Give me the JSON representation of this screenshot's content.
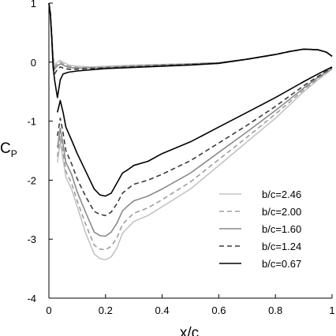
{
  "chart_data": {
    "type": "line",
    "title": "",
    "xlabel": "x/c",
    "ylabel": {
      "main": "C",
      "sub": "P"
    },
    "xlim": [
      0,
      1
    ],
    "ylim": [
      -4,
      1
    ],
    "x_ticks": [
      0,
      0.2,
      0.4,
      0.6,
      0.8,
      1
    ],
    "x_tick_labels": [
      "0",
      "0.2",
      "0.4",
      "0.6",
      "0.8",
      "1"
    ],
    "y_ticks": [
      1,
      0,
      -1,
      -2,
      -3,
      -4
    ],
    "y_tick_labels": [
      "1",
      "0",
      "-1",
      "-2",
      "-3",
      "-4"
    ],
    "grid": false,
    "legend_position": "lower-right",
    "series": [
      {
        "name": "b/c=2.46",
        "color": "#c4c4c4",
        "dash": "solid",
        "upper": {
          "x": [
            0,
            0.005,
            0.01,
            0.015,
            0.02,
            0.03,
            0.04,
            0.05,
            0.07,
            0.1,
            0.15,
            0.2,
            0.3,
            0.4,
            0.5,
            0.6,
            0.7,
            0.8,
            0.85,
            0.9,
            0.95,
            0.98,
            1.0
          ],
          "y": [
            1,
            0.85,
            0.5,
            0.1,
            -0.05,
            0.0,
            0.03,
            0.0,
            -0.05,
            -0.07,
            -0.08,
            -0.07,
            -0.05,
            -0.04,
            -0.03,
            -0.01,
            0.05,
            0.13,
            0.18,
            0.22,
            0.21,
            0.17,
            0.1
          ]
        },
        "lower": {
          "x": [
            0.03,
            0.04,
            0.05,
            0.06,
            0.08,
            0.1,
            0.13,
            0.16,
            0.18,
            0.2,
            0.22,
            0.24,
            0.26,
            0.28,
            0.3,
            0.35,
            0.4,
            0.5,
            0.6,
            0.7,
            0.8,
            0.9,
            0.95,
            1.0
          ],
          "y": [
            -1.7,
            -1.35,
            -1.65,
            -1.95,
            -2.15,
            -2.45,
            -2.9,
            -3.25,
            -3.33,
            -3.35,
            -3.3,
            -3.15,
            -2.9,
            -2.8,
            -2.7,
            -2.6,
            -2.45,
            -2.15,
            -1.75,
            -1.35,
            -0.95,
            -0.5,
            -0.3,
            -0.12
          ]
        }
      },
      {
        "name": "b/c=2.00",
        "color": "#9e9e9e",
        "dash": "dashed",
        "upper": {
          "x": [
            0,
            0.005,
            0.01,
            0.015,
            0.02,
            0.03,
            0.04,
            0.05,
            0.07,
            0.1,
            0.15,
            0.2,
            0.3,
            0.4,
            0.5,
            0.6,
            0.7,
            0.8,
            0.85,
            0.9,
            0.95,
            0.98,
            1.0
          ],
          "y": [
            1,
            0.85,
            0.5,
            0.05,
            -0.08,
            -0.03,
            0.0,
            -0.03,
            -0.07,
            -0.09,
            -0.09,
            -0.08,
            -0.06,
            -0.04,
            -0.03,
            -0.01,
            0.05,
            0.13,
            0.18,
            0.22,
            0.21,
            0.17,
            0.1
          ]
        },
        "lower": {
          "x": [
            0.03,
            0.04,
            0.05,
            0.06,
            0.08,
            0.1,
            0.13,
            0.16,
            0.18,
            0.2,
            0.22,
            0.24,
            0.26,
            0.28,
            0.3,
            0.35,
            0.4,
            0.5,
            0.6,
            0.7,
            0.8,
            0.9,
            0.95,
            1.0
          ],
          "y": [
            -1.6,
            -1.25,
            -1.55,
            -1.85,
            -2.05,
            -2.35,
            -2.75,
            -3.1,
            -3.17,
            -3.18,
            -3.12,
            -2.98,
            -2.75,
            -2.65,
            -2.56,
            -2.47,
            -2.33,
            -2.03,
            -1.65,
            -1.27,
            -0.88,
            -0.47,
            -0.28,
            -0.11
          ]
        }
      },
      {
        "name": "b/c=1.60",
        "color": "#8a8a8a",
        "dash": "solid",
        "upper": {
          "x": [
            0,
            0.005,
            0.01,
            0.015,
            0.02,
            0.03,
            0.04,
            0.05,
            0.07,
            0.1,
            0.15,
            0.2,
            0.3,
            0.4,
            0.5,
            0.6,
            0.7,
            0.8,
            0.85,
            0.9,
            0.95,
            0.98,
            1.0
          ],
          "y": [
            1,
            0.85,
            0.45,
            0.0,
            -0.12,
            -0.06,
            -0.03,
            -0.05,
            -0.09,
            -0.1,
            -0.1,
            -0.09,
            -0.07,
            -0.05,
            -0.03,
            -0.01,
            0.05,
            0.13,
            0.18,
            0.22,
            0.21,
            0.17,
            0.1
          ]
        },
        "lower": {
          "x": [
            0.03,
            0.04,
            0.05,
            0.06,
            0.08,
            0.1,
            0.13,
            0.16,
            0.18,
            0.2,
            0.22,
            0.24,
            0.26,
            0.28,
            0.3,
            0.35,
            0.4,
            0.5,
            0.6,
            0.7,
            0.8,
            0.9,
            0.95,
            1.0
          ],
          "y": [
            -1.45,
            -1.12,
            -1.4,
            -1.7,
            -1.9,
            -2.2,
            -2.55,
            -2.88,
            -2.94,
            -2.95,
            -2.88,
            -2.73,
            -2.52,
            -2.43,
            -2.35,
            -2.27,
            -2.15,
            -1.88,
            -1.53,
            -1.18,
            -0.82,
            -0.44,
            -0.26,
            -0.1
          ]
        }
      },
      {
        "name": "b/c=1.24",
        "color": "#3c3c3c",
        "dash": "dashed",
        "upper": {
          "x": [
            0,
            0.005,
            0.01,
            0.015,
            0.02,
            0.03,
            0.04,
            0.05,
            0.07,
            0.1,
            0.15,
            0.2,
            0.3,
            0.4,
            0.5,
            0.6,
            0.7,
            0.8,
            0.85,
            0.9,
            0.95,
            0.98,
            1.0
          ],
          "y": [
            1,
            0.85,
            0.45,
            -0.05,
            -0.2,
            -0.12,
            -0.08,
            -0.1,
            -0.12,
            -0.12,
            -0.11,
            -0.1,
            -0.08,
            -0.06,
            -0.04,
            -0.02,
            0.05,
            0.13,
            0.18,
            0.22,
            0.21,
            0.17,
            0.1
          ]
        },
        "lower": {
          "x": [
            0.03,
            0.04,
            0.05,
            0.06,
            0.08,
            0.1,
            0.13,
            0.16,
            0.18,
            0.2,
            0.22,
            0.24,
            0.26,
            0.28,
            0.3,
            0.35,
            0.4,
            0.5,
            0.6,
            0.7,
            0.8,
            0.9,
            0.95,
            1.0
          ],
          "y": [
            -1.25,
            -0.95,
            -1.2,
            -1.5,
            -1.72,
            -1.98,
            -2.28,
            -2.53,
            -2.58,
            -2.6,
            -2.54,
            -2.4,
            -2.22,
            -2.14,
            -2.07,
            -2.0,
            -1.9,
            -1.67,
            -1.37,
            -1.07,
            -0.75,
            -0.4,
            -0.24,
            -0.09
          ]
        }
      },
      {
        "name": "b/c=0.67",
        "color": "#000000",
        "dash": "solid",
        "upper": {
          "x": [
            0,
            0.005,
            0.01,
            0.015,
            0.02,
            0.03,
            0.04,
            0.05,
            0.07,
            0.1,
            0.15,
            0.2,
            0.3,
            0.4,
            0.5,
            0.6,
            0.7,
            0.8,
            0.85,
            0.9,
            0.95,
            0.98,
            1.0
          ],
          "y": [
            1,
            0.8,
            0.4,
            -0.1,
            -0.3,
            -0.6,
            -0.3,
            -0.2,
            -0.17,
            -0.15,
            -0.13,
            -0.11,
            -0.09,
            -0.07,
            -0.05,
            -0.02,
            0.05,
            0.13,
            0.18,
            0.22,
            0.21,
            0.17,
            0.1
          ]
        },
        "lower": {
          "x": [
            0.03,
            0.04,
            0.05,
            0.06,
            0.08,
            0.1,
            0.13,
            0.16,
            0.18,
            0.2,
            0.22,
            0.24,
            0.26,
            0.28,
            0.3,
            0.35,
            0.4,
            0.5,
            0.6,
            0.7,
            0.8,
            0.9,
            0.95,
            1.0
          ],
          "y": [
            -0.85,
            -0.65,
            -0.85,
            -1.1,
            -1.32,
            -1.55,
            -1.85,
            -2.15,
            -2.25,
            -2.27,
            -2.22,
            -2.05,
            -1.88,
            -1.82,
            -1.75,
            -1.68,
            -1.55,
            -1.35,
            -1.1,
            -0.85,
            -0.6,
            -0.33,
            -0.2,
            -0.08
          ]
        }
      }
    ]
  }
}
